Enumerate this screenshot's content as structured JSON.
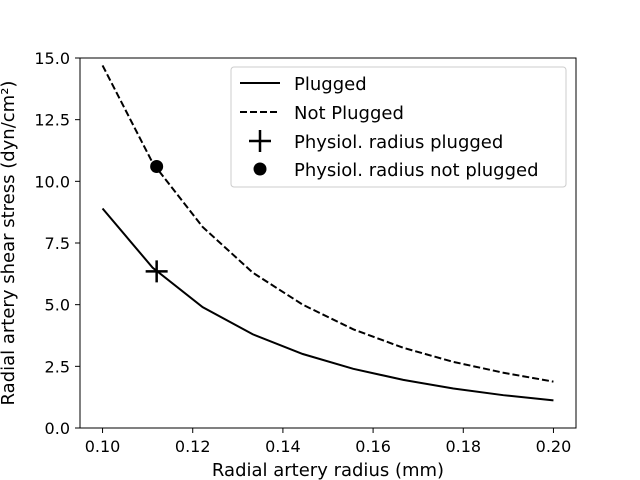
{
  "chart_data": {
    "type": "line",
    "title": "",
    "xlabel": "Radial artery radius (mm)",
    "ylabel": "Radial artery shear stress (dyn/cm²)",
    "xlim": [
      0.095,
      0.205
    ],
    "ylim": [
      0.0,
      15.0
    ],
    "x_ticks": [
      0.1,
      0.12,
      0.14,
      0.16,
      0.18,
      0.2
    ],
    "x_tick_labels": [
      "0.10",
      "0.12",
      "0.14",
      "0.16",
      "0.18",
      "0.20"
    ],
    "y_ticks": [
      0.0,
      2.5,
      5.0,
      7.5,
      10.0,
      12.5,
      15.0
    ],
    "y_tick_labels": [
      "0.0",
      "2.5",
      "5.0",
      "7.5",
      "10.0",
      "12.5",
      "15.0"
    ],
    "grid": false,
    "legend_position": "top-right",
    "series": [
      {
        "name": "Plugged",
        "style": "solid",
        "color": "#000000",
        "x": [
          0.1,
          0.1111,
          0.1222,
          0.1333,
          0.1444,
          0.1556,
          0.1667,
          0.1778,
          0.1889,
          0.2
        ],
        "y": [
          8.9,
          6.5,
          4.9,
          3.8,
          3.0,
          2.4,
          1.95,
          1.6,
          1.33,
          1.12
        ]
      },
      {
        "name": "Not Plugged",
        "style": "dashed",
        "color": "#000000",
        "x": [
          0.1,
          0.1111,
          0.1222,
          0.1333,
          0.1444,
          0.1556,
          0.1667,
          0.1778,
          0.1889,
          0.2
        ],
        "y": [
          14.7,
          10.75,
          8.15,
          6.3,
          5.0,
          4.0,
          3.25,
          2.68,
          2.24,
          1.88
        ]
      }
    ],
    "markers": [
      {
        "name": "Physiol. radius plugged",
        "marker": "plus",
        "x": 0.112,
        "y": 6.35
      },
      {
        "name": "Physiol. radius not plugged",
        "marker": "circle",
        "x": 0.112,
        "y": 10.6
      }
    ]
  }
}
